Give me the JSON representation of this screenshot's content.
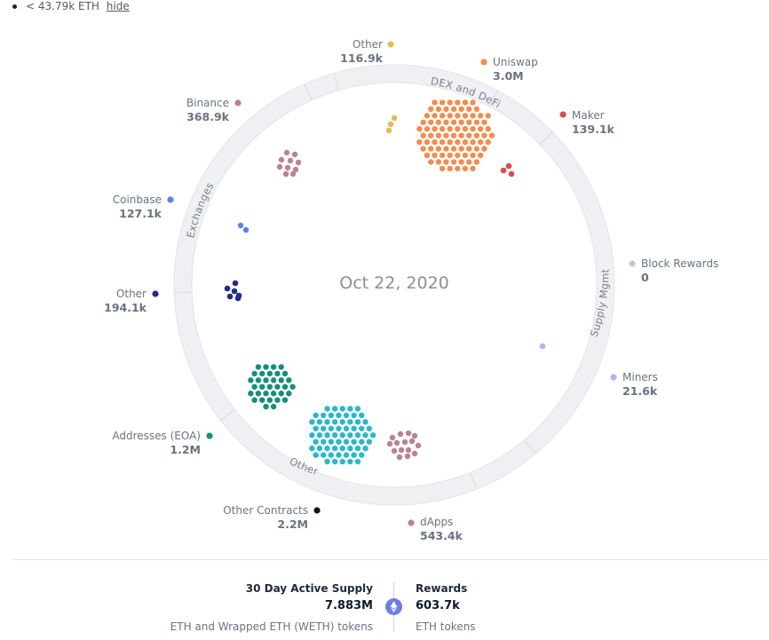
{
  "filter_note": {
    "text": "< 43.79k ETH",
    "hide_label": "hide"
  },
  "center_date": "Oct 22, 2020",
  "ring_sections": [
    "DEX and DeFi",
    "Supply Mgmt",
    "Other",
    "Exchanges"
  ],
  "chart_data": {
    "type": "bubble-cluster",
    "title": "",
    "categories": [
      {
        "name": "Other",
        "value": "116.9k",
        "color": "#e6b85c",
        "group": "DEX and DeFi"
      },
      {
        "name": "Uniswap",
        "value": "3.0M",
        "color": "#f28c4f",
        "group": "DEX and DeFi"
      },
      {
        "name": "Maker",
        "value": "139.1k",
        "color": "#e0494d",
        "group": "DEX and DeFi"
      },
      {
        "name": "Block Rewards",
        "value": "0",
        "color": "#c8c8c8",
        "group": "Supply Mgmt"
      },
      {
        "name": "Miners",
        "value": "21.6k",
        "color": "#a9b8f2",
        "group": "Supply Mgmt"
      },
      {
        "name": "dApps",
        "value": "543.4k",
        "color": "#b8848f",
        "group": "Other"
      },
      {
        "name": "Other Contracts",
        "value": "2.2M",
        "color": "#2ab8c8",
        "group": "Other"
      },
      {
        "name": "Addresses (EOA)",
        "value": "1.2M",
        "color": "#138f79",
        "group": "Other"
      },
      {
        "name": "Other",
        "value": "194.1k",
        "color": "#232a8c",
        "group": "Exchanges"
      },
      {
        "name": "Coinbase",
        "value": "127.1k",
        "color": "#5b83e6",
        "group": "Exchanges"
      },
      {
        "name": "Binance",
        "value": "368.9k",
        "color": "#b8848f",
        "group": "Exchanges"
      }
    ],
    "legend_dot_colors_override": {
      "Other Contracts": "#111111"
    }
  },
  "footer": {
    "supply_title": "30 Day Active Supply",
    "supply_value": "7.883M",
    "supply_sub": "ETH and Wrapped ETH (WETH) tokens",
    "rewards_title": "Rewards",
    "rewards_value": "603.7k",
    "rewards_sub": "ETH tokens"
  }
}
